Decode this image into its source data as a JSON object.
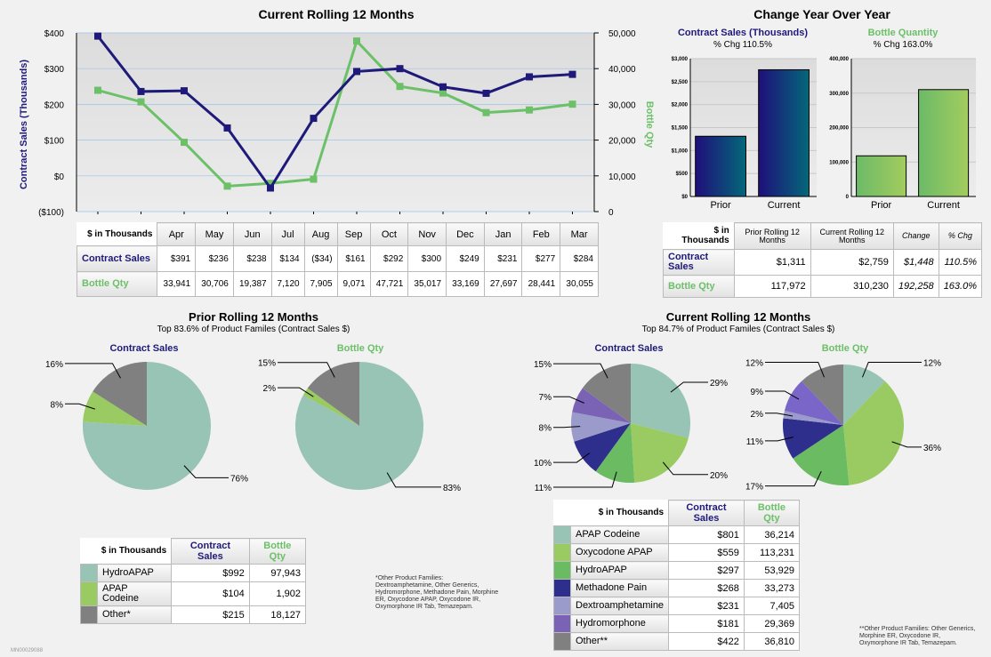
{
  "colors": {
    "navy": "#1f1a7a",
    "green": "#6cc068",
    "teal": "#97c4b4",
    "lightgreen": "#9acb62",
    "midgreen": "#6bbb63",
    "darkblue": "#2e2e8c",
    "lavender": "#9a9acb",
    "purple": "#7a62b4",
    "violet": "#7a66c8",
    "gray": "#808080"
  },
  "chart_data": [
    {
      "type": "line",
      "title": "Current Rolling 12 Months",
      "ylabel": "Contract Sales (Thousands)",
      "y2label": "Bottle Qty",
      "ylim": [
        -100,
        400
      ],
      "y2lim": [
        0,
        50000
      ],
      "yticks": [
        "$400",
        "$300",
        "$200",
        "$100",
        "$0",
        "($100)"
      ],
      "y2ticks": [
        "50,000",
        "40,000",
        "30,000",
        "20,000",
        "10,000",
        "0"
      ],
      "categories": [
        "Apr",
        "May",
        "Jun",
        "Jul",
        "Aug",
        "Sep",
        "Oct",
        "Nov",
        "Dec",
        "Jan",
        "Feb",
        "Mar"
      ],
      "series": [
        {
          "name": "Contract Sales",
          "values": [
            391,
            236,
            238,
            134,
            -34,
            161,
            292,
            300,
            249,
            231,
            277,
            284
          ]
        },
        {
          "name": "Bottle Qty",
          "values": [
            33941,
            30706,
            19387,
            7120,
            7905,
            9071,
            47721,
            35017,
            33169,
            27697,
            28441,
            30055
          ]
        }
      ],
      "table": {
        "corner": "$ in Thousands",
        "rows": [
          {
            "label": "Contract Sales",
            "cells": [
              "$391",
              "$236",
              "$238",
              "$134",
              "($34)",
              "$161",
              "$292",
              "$300",
              "$249",
              "$231",
              "$277",
              "$284"
            ]
          },
          {
            "label": "Bottle Qty",
            "cells": [
              "33,941",
              "30,706",
              "19,387",
              "7,120",
              "7,905",
              "9,071",
              "47,721",
              "35,017",
              "33,169",
              "27,697",
              "28,441",
              "30,055"
            ]
          }
        ]
      }
    },
    {
      "type": "bar",
      "title": "Contract Sales (Thousands)",
      "subtitle": "% Chg 110.5%",
      "categories": [
        "Prior",
        "Current"
      ],
      "values": [
        1311,
        2759
      ],
      "ylim": [
        0,
        3000
      ],
      "yticks": [
        "$3,000",
        "$2,500",
        "$2,000",
        "$1,500",
        "$1,000",
        "$500",
        "$0"
      ]
    },
    {
      "type": "bar",
      "title": "Bottle Quantity",
      "subtitle": "% Chg 163.0%",
      "categories": [
        "Prior",
        "Current"
      ],
      "values": [
        117972,
        310230
      ],
      "ylim": [
        0,
        400000
      ],
      "yticks": [
        "400,000",
        "300,000",
        "200,000",
        "100,000",
        "0"
      ]
    },
    {
      "type": "pie",
      "title": "Contract Sales",
      "labels": [
        "HydroAPAP",
        "APAP Codeine",
        "Other*"
      ],
      "values": [
        76,
        8,
        16
      ]
    },
    {
      "type": "pie",
      "title": "Bottle Qty",
      "labels": [
        "HydroAPAP",
        "APAP Codeine",
        "Other*"
      ],
      "values": [
        83,
        2,
        15
      ]
    },
    {
      "type": "pie",
      "title": "Contract Sales",
      "labels": [
        "APAP Codeine",
        "Oxycodone APAP",
        "HydroAPAP",
        "Methadone Pain",
        "Dextroamphetamine",
        "Hydromorphone",
        "Other**"
      ],
      "values": [
        29,
        20,
        11,
        10,
        8,
        7,
        15
      ]
    },
    {
      "type": "pie",
      "title": "Bottle Qty",
      "labels": [
        "APAP Codeine",
        "Oxycodone APAP",
        "HydroAPAP",
        "Methadone Pain",
        "Dextroamphetamine",
        "Hydromorphone",
        "Other**"
      ],
      "values": [
        12,
        36,
        17,
        11,
        2,
        9,
        12
      ]
    }
  ],
  "yoy": {
    "title": "Change Year Over Year",
    "table": {
      "corner": "$ in Thousands",
      "headers": [
        "Prior Rolling 12 Months",
        "Current Rolling 12 Months",
        "Change",
        "% Chg"
      ],
      "rows": [
        {
          "label": "Contract Sales",
          "cells": [
            "$1,311",
            "$2,759",
            "$1,448",
            "110.5%"
          ]
        },
        {
          "label": "Bottle Qty",
          "cells": [
            "117,972",
            "310,230",
            "192,258",
            "163.0%"
          ]
        }
      ]
    }
  },
  "prior": {
    "title": "Prior Rolling 12 Months",
    "subtitle": "Top 83.6% of Product Familes (Contract Sales $)",
    "table": {
      "corner": "$ in Thousands",
      "headers": [
        "Contract Sales",
        "Bottle Qty"
      ],
      "rows": [
        {
          "label": "HydroAPAP",
          "cs": "$992",
          "bq": "97,943"
        },
        {
          "label": "APAP Codeine",
          "cs": "$104",
          "bq": "1,902"
        },
        {
          "label": "Other*",
          "cs": "$215",
          "bq": "18,127"
        }
      ]
    },
    "note": "*Other Product Families: Dextroamphetamine, Other Generics, Hydromorphone, Methadone Pain, Morphine ER, Oxycodone APAP, Oxycodone IR, Oxymorphone IR Tab, Temazepam."
  },
  "current": {
    "title": "Current Rolling 12 Months",
    "subtitle": "Top 84.7% of Product Familes (Contract Sales $)",
    "table": {
      "corner": "$ in Thousands",
      "headers": [
        "Contract Sales",
        "Bottle Qty"
      ],
      "rows": [
        {
          "label": "APAP Codeine",
          "cs": "$801",
          "bq": "36,214"
        },
        {
          "label": "Oxycodone APAP",
          "cs": "$559",
          "bq": "113,231"
        },
        {
          "label": "HydroAPAP",
          "cs": "$297",
          "bq": "53,929"
        },
        {
          "label": "Methadone Pain",
          "cs": "$268",
          "bq": "33,273"
        },
        {
          "label": "Dextroamphetamine",
          "cs": "$231",
          "bq": "7,405"
        },
        {
          "label": "Hydromorphone",
          "cs": "$181",
          "bq": "29,369"
        },
        {
          "label": "Other**",
          "cs": "$422",
          "bq": "36,810"
        }
      ]
    },
    "note": "**Other Product Families: Other Generics, Morphine ER, Oxycodone IR, Oxymorphone IR Tab, Temazepam."
  },
  "footer_code": "MN00029088"
}
